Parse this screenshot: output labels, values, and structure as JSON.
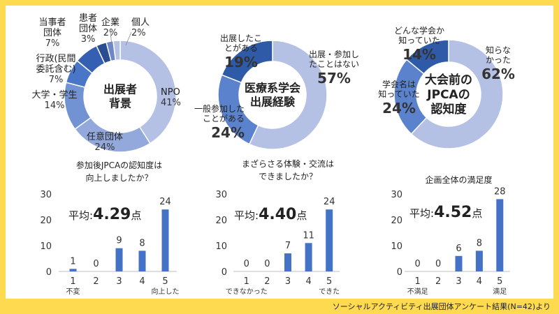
{
  "footer": "ソーシャルアクティビティ出展団体アンケート結果(N=42)より",
  "colors": {
    "background": "#FDDA4F",
    "panel": "#FFFFFF",
    "bar": "#4472C4",
    "donut": [
      "#B4C0E4",
      "#93A9DC",
      "#7192D3",
      "#4A76C8",
      "#355FB2",
      "#294C92",
      "#6E87C8"
    ]
  },
  "chart_data": [
    {
      "type": "pie",
      "title": "出展者\n背景",
      "slices": [
        {
          "label": "NPO",
          "value": 41,
          "display": "41%",
          "color": "#B4C0E4"
        },
        {
          "label": "任意団体",
          "value": 24,
          "display": "24%",
          "color": "#93A9DC"
        },
        {
          "label": "大学・学生",
          "value": 14,
          "display": "14%",
          "color": "#7192D3"
        },
        {
          "label": "行政(民間\n委託含む)",
          "value": 7,
          "display": "7%",
          "color": "#4A76C8"
        },
        {
          "label": "当事者\n団体",
          "value": 7,
          "display": "7%",
          "color": "#355FB2"
        },
        {
          "label": "患者\n団体",
          "value": 3,
          "display": "3%",
          "color": "#294C92"
        },
        {
          "label": "企業",
          "value": 2,
          "display": "2%",
          "color": "#6E87C8"
        },
        {
          "label": "個人",
          "value": 2,
          "display": "2%",
          "color": "#B4C0E4"
        }
      ]
    },
    {
      "type": "pie",
      "title": "医療系学会\n出展経験",
      "slices": [
        {
          "label": "出展・参加し\nたことはない",
          "value": 57,
          "display": "57%",
          "color": "#B4C0E4"
        },
        {
          "label": "一般参加した\nことがある",
          "value": 24,
          "display": "24%",
          "color": "#5A82CD"
        },
        {
          "label": "出展したこ\nとがある",
          "value": 19,
          "display": "19%",
          "color": "#2E5AA8"
        }
      ]
    },
    {
      "type": "pie",
      "title": "大会前の\nJPCAの\n認知度",
      "slices": [
        {
          "label": "知らな\nかった",
          "value": 62,
          "display": "62%",
          "color": "#B4C0E4"
        },
        {
          "label": "学会名は\n知っていた",
          "value": 24,
          "display": "24%",
          "color": "#5A82CD"
        },
        {
          "label": "どんな学会か\n知っていた",
          "value": 14,
          "display": "14%",
          "color": "#2E5AA8"
        }
      ]
    },
    {
      "type": "bar",
      "title": "参加後JPCAの認知度は\n向上しましたか？",
      "categories": [
        "1",
        "2",
        "3",
        "4",
        "5"
      ],
      "values": [
        1,
        0,
        9,
        8,
        24
      ],
      "category_notes": [
        "不変",
        "",
        "",
        "",
        "向上した"
      ],
      "ylim": [
        0,
        30
      ],
      "yticks": [
        0,
        10,
        20,
        30
      ],
      "average_label": "平均:",
      "average_value": "4.29",
      "average_unit": "点"
    },
    {
      "type": "bar",
      "title": "まざらさる体験・交流は\nできましたか？",
      "categories": [
        "1",
        "2",
        "3",
        "4",
        "5"
      ],
      "values": [
        0,
        0,
        7,
        11,
        24
      ],
      "category_notes": [
        "できなかった",
        "",
        "",
        "",
        "できた"
      ],
      "ylim": [
        0,
        30
      ],
      "yticks": [
        0,
        10,
        20,
        30
      ],
      "average_label": "平均:",
      "average_value": "4.40",
      "average_unit": "点"
    },
    {
      "type": "bar",
      "title": "企画全体の満足度",
      "categories": [
        "1",
        "2",
        "3",
        "4",
        "5"
      ],
      "values": [
        0,
        0,
        6,
        8,
        28
      ],
      "category_notes": [
        "不満足",
        "",
        "",
        "",
        "満足"
      ],
      "ylim": [
        0,
        30
      ],
      "yticks": [
        0,
        10,
        20,
        30
      ],
      "average_label": "平均:",
      "average_value": "4.52",
      "average_unit": "点"
    }
  ]
}
